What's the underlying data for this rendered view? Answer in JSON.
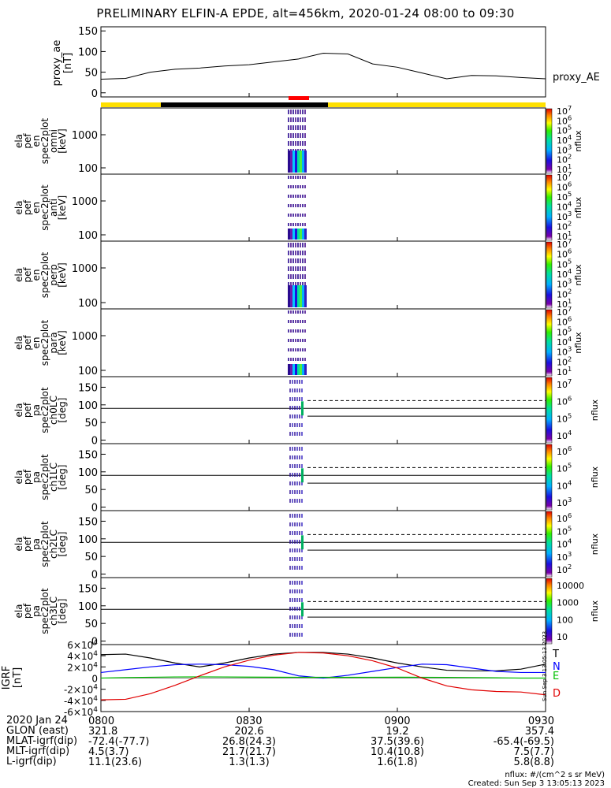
{
  "title": "PRELIMINARY ELFIN-A EPDE, alt=456km, 2020-01-24 08:00 to 09:30",
  "colors": {
    "black": "#000000",
    "blue": "#0000ff",
    "green": "#00c000",
    "red": "#e00000",
    "yellow": "#ffe000",
    "marker": "#ff0000"
  },
  "chart_data": [
    {
      "type": "line",
      "panel": "proxy_ae",
      "ylabel": [
        "proxy_ae",
        "[nT]"
      ],
      "yticks": [
        0,
        50,
        100,
        150
      ],
      "ylim": [
        -10,
        160
      ],
      "legend": "proxy_AE",
      "x_minutes": [
        0,
        5,
        10,
        15,
        20,
        25,
        30,
        35,
        40,
        45,
        50,
        55,
        60,
        65,
        70,
        75,
        80,
        85,
        90
      ],
      "values": [
        33,
        35,
        50,
        57,
        60,
        65,
        68,
        75,
        82,
        96,
        94,
        70,
        62,
        48,
        34,
        42,
        41,
        37,
        34
      ]
    },
    {
      "type": "heatmap",
      "panel": "spec_omni",
      "ylabel": [
        "ela",
        "pef",
        "en",
        "spec2plot",
        "omni",
        "[keV]"
      ],
      "yticks": [
        "100",
        "1000"
      ],
      "scale": "log",
      "colorbar": {
        "label": "nflux",
        "ticks": [
          "10^1",
          "10^2",
          "10^3",
          "10^4",
          "10^5",
          "10^6",
          "10^7"
        ]
      }
    },
    {
      "type": "heatmap",
      "panel": "spec_anti",
      "ylabel": [
        "ela",
        "pef",
        "en",
        "spec2plot",
        "anti",
        "[keV]"
      ],
      "yticks": [
        "100",
        "1000"
      ],
      "scale": "log",
      "colorbar": {
        "label": "nflux",
        "ticks": [
          "10^1",
          "10^2",
          "10^3",
          "10^4",
          "10^5",
          "10^6",
          "10^7"
        ]
      }
    },
    {
      "type": "heatmap",
      "panel": "spec_perp",
      "ylabel": [
        "ela",
        "pef",
        "en",
        "spec2plot",
        "perp",
        "[keV]"
      ],
      "yticks": [
        "100",
        "1000"
      ],
      "scale": "log",
      "colorbar": {
        "label": "nflux",
        "ticks": [
          "10^1",
          "10^2",
          "10^3",
          "10^4",
          "10^5",
          "10^6",
          "10^7"
        ]
      }
    },
    {
      "type": "heatmap",
      "panel": "spec_para",
      "ylabel": [
        "ela",
        "pef",
        "en",
        "spec2plot",
        "para",
        "[keV]"
      ],
      "yticks": [
        "100",
        "1000"
      ],
      "scale": "log",
      "colorbar": {
        "label": "nflux",
        "ticks": [
          "10^1",
          "10^2",
          "10^3",
          "10^4",
          "10^5",
          "10^6",
          "10^7"
        ]
      }
    },
    {
      "type": "heatmap",
      "panel": "pa_ch0",
      "ylabel": [
        "ela",
        "pef",
        "pa",
        "spec2plot",
        "ch0LC",
        "[deg]"
      ],
      "yticks": [
        0,
        50,
        100,
        150
      ],
      "ylim": [
        -10,
        180
      ],
      "colorbar": {
        "label": "nflux",
        "ticks": [
          "10^4",
          "10^5",
          "10^6",
          "10^7"
        ]
      }
    },
    {
      "type": "heatmap",
      "panel": "pa_ch1",
      "ylabel": [
        "ela",
        "pef",
        "pa",
        "spec2plot",
        "ch1LC",
        "[deg]"
      ],
      "yticks": [
        0,
        50,
        100,
        150
      ],
      "ylim": [
        -10,
        180
      ],
      "colorbar": {
        "label": "nflux",
        "ticks": [
          "10^3",
          "10^4",
          "10^5",
          "10^6"
        ]
      }
    },
    {
      "type": "heatmap",
      "panel": "pa_ch2",
      "ylabel": [
        "ela",
        "pef",
        "pa",
        "spec2plot",
        "ch2LC",
        "[deg]"
      ],
      "yticks": [
        0,
        50,
        100,
        150
      ],
      "ylim": [
        -10,
        180
      ],
      "colorbar": {
        "label": "nflux",
        "ticks": [
          "10^2",
          "10^3",
          "10^4",
          "10^5",
          "10^6"
        ]
      }
    },
    {
      "type": "heatmap",
      "panel": "pa_ch3",
      "ylabel": [
        "ela",
        "pef",
        "pa",
        "spec2plot",
        "ch3LC",
        "[deg]"
      ],
      "yticks": [
        0,
        50,
        100,
        150
      ],
      "ylim": [
        -10,
        180
      ],
      "colorbar": {
        "label": "nflux",
        "ticks": [
          "10",
          "100",
          "1000",
          "10000"
        ]
      }
    },
    {
      "type": "line",
      "panel": "igrf",
      "ylabel": [
        "IGRF",
        "[nT]"
      ],
      "yticks": [
        "-6×10^4",
        "-4×10^4",
        "-2×10^4",
        "0",
        "2×10^4",
        "4×10^4",
        "6×10^4"
      ],
      "ylim": [
        -60000,
        60000
      ],
      "x_minutes": [
        0,
        5,
        10,
        15,
        20,
        25,
        30,
        35,
        40,
        45,
        50,
        55,
        60,
        65,
        70,
        75,
        80,
        85,
        90
      ],
      "series": [
        {
          "name": "T",
          "color": "black",
          "values": [
            42000,
            43000,
            36000,
            27000,
            20000,
            27000,
            36000,
            43000,
            46000,
            46000,
            43000,
            36000,
            27000,
            20000,
            14000,
            13000,
            13000,
            16000,
            25000
          ]
        },
        {
          "name": "N",
          "color": "blue",
          "values": [
            10000,
            15000,
            20000,
            24000,
            25000,
            24000,
            21000,
            15000,
            4000,
            0,
            5000,
            12000,
            19000,
            25000,
            24000,
            18000,
            12000,
            10000,
            10000
          ]
        },
        {
          "name": "E",
          "color": "green",
          "values": [
            0,
            1000,
            1500,
            2000,
            2200,
            2000,
            1800,
            1600,
            1500,
            1400,
            1400,
            1500,
            1600,
            1500,
            1300,
            1000,
            500,
            0,
            0
          ]
        },
        {
          "name": "D",
          "color": "red",
          "values": [
            -39000,
            -38000,
            -28000,
            -13000,
            4000,
            20000,
            32000,
            41000,
            46000,
            45000,
            40000,
            31000,
            18000,
            0,
            -14000,
            -21000,
            -24000,
            -25000,
            -30000
          ]
        }
      ]
    }
  ],
  "x_axis": {
    "rows": [
      {
        "label": "2020 Jan 24",
        "values": [
          "0800",
          "0830",
          "0900",
          "0930"
        ]
      },
      {
        "label": "GLON (east)",
        "values": [
          "321.8",
          "202.6",
          "19.2",
          "357.4"
        ]
      },
      {
        "label": "MLAT-igrf(dip)",
        "values": [
          "-72.4(-77.7)",
          "26.8(24.3)",
          "37.5(39.6)",
          "-65.4(-69.5)"
        ]
      },
      {
        "label": "MLT-igrf(dip)",
        "values": [
          "4.5(3.7)",
          "21.7(21.7)",
          "10.4(10.8)",
          "7.5(7.7)"
        ]
      },
      {
        "label": "L-igrf(dip)",
        "values": [
          "11.1(23.6)",
          "1.3(1.3)",
          "1.6(1.8)",
          "5.8(8.8)"
        ]
      }
    ]
  },
  "footer": {
    "units": "nflux: #/(cm^2 s sr MeV)",
    "created": "Created: Sun Sep  3 13:05:13 2023"
  },
  "side_stamp": "Sun Sep  3 13:05:13 2023"
}
